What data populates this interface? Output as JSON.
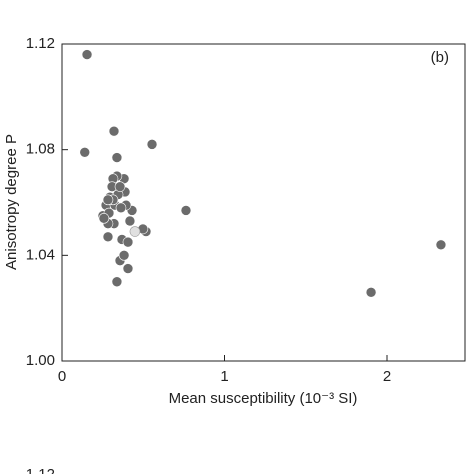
{
  "chart_data": [
    {
      "type": "scatter",
      "xlabel": "Mean susceptibility (10⁻³ SI)",
      "ylabel": "Anisotropy degree P",
      "annotation": "(b)",
      "xlim": [
        0,
        2.48
      ],
      "ylim": [
        1.0,
        1.12
      ],
      "xticks": [
        0,
        1,
        2
      ],
      "yticks": [
        {
          "value": 1.0,
          "label": "1.00"
        },
        1.04,
        1.08,
        1.12
      ],
      "series": [
        {
          "color": "#6b6b6b",
          "x": [
            0.154,
            0.14,
            0.32,
            0.554,
            0.338,
            0.763,
            2.332,
            1.902,
            0.338,
            0.357,
            0.406,
            0.382,
            0.369,
            0.406,
            0.283,
            0.517,
            0.498,
            0.418,
            0.431,
            0.394,
            0.388,
            0.382,
            0.338,
            0.314,
            0.308,
            0.295,
            0.271,
            0.252,
            0.289,
            0.326,
            0.345,
            0.357,
            0.32,
            0.283,
            0.363,
            0.314,
            0.258,
            0.283
          ],
          "values": [
            1.116,
            1.079,
            1.087,
            1.082,
            1.077,
            1.057,
            1.044,
            1.026,
            1.03,
            1.038,
            1.035,
            1.04,
            1.046,
            1.045,
            1.047,
            1.049,
            1.05,
            1.053,
            1.057,
            1.059,
            1.064,
            1.069,
            1.07,
            1.069,
            1.066,
            1.062,
            1.059,
            1.055,
            1.056,
            1.059,
            1.063,
            1.066,
            1.052,
            1.052,
            1.058,
            1.061,
            1.054,
            1.061
          ]
        },
        {
          "color": "#e0e0e0",
          "x": [
            0.449
          ],
          "values": [
            1.049
          ]
        }
      ]
    },
    {
      "type": "scatter",
      "yticks": [
        1.12
      ]
    }
  ]
}
